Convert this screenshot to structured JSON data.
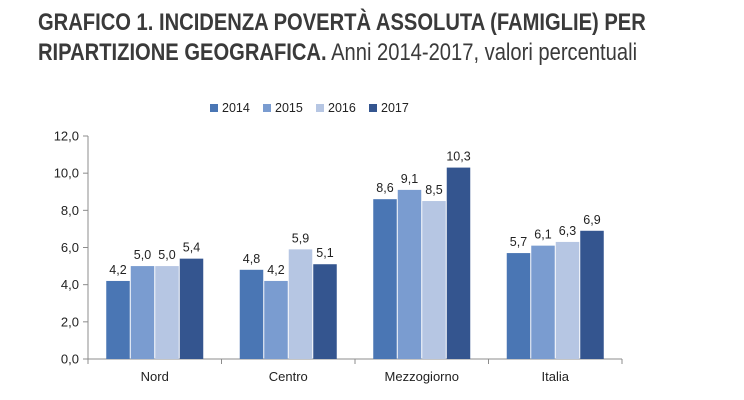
{
  "title": {
    "bold": "GRAFICO 1. INCIDENZA POVERTÀ ASSOLUTA (FAMIGLIE) PER",
    "bold2": "RIPARTIZIONE GEOGRAFICA.",
    "normal": " Anni 2014-2017, valori percentuali"
  },
  "chart_data": {
    "type": "bar",
    "title": "GRAFICO 1. INCIDENZA POVERTÀ ASSOLUTA (FAMIGLIE) PER RIPARTIZIONE GEOGRAFICA. Anni 2014-2017, valori percentuali",
    "categories": [
      "Nord",
      "Centro",
      "Mezzogiorno",
      "Italia"
    ],
    "series": [
      {
        "name": "2014",
        "color": "#4a76b4",
        "values": [
          4.2,
          4.8,
          8.6,
          5.7
        ],
        "labels": [
          "4,2",
          "4,8",
          "8,6",
          "5,7"
        ]
      },
      {
        "name": "2015",
        "color": "#7a9cd0",
        "values": [
          5.0,
          4.2,
          9.1,
          6.1
        ],
        "labels": [
          "5,0",
          "4,2",
          "9,1",
          "6,1"
        ]
      },
      {
        "name": "2016",
        "color": "#b6c6e3",
        "values": [
          5.0,
          5.9,
          8.5,
          6.3
        ],
        "labels": [
          "5,0",
          "5,9",
          "8,5",
          "6,3"
        ]
      },
      {
        "name": "2017",
        "color": "#34558f",
        "values": [
          5.4,
          5.1,
          10.3,
          6.9
        ],
        "labels": [
          "5,4",
          "5,1",
          "10,3",
          "6,9"
        ]
      }
    ],
    "ylim": [
      0,
      12
    ],
    "yticks": [
      "0,0",
      "2,0",
      "4,0",
      "6,0",
      "8,0",
      "10,0",
      "12,0"
    ],
    "xlabel": "",
    "ylabel": "",
    "legend": "top",
    "grid": false
  }
}
